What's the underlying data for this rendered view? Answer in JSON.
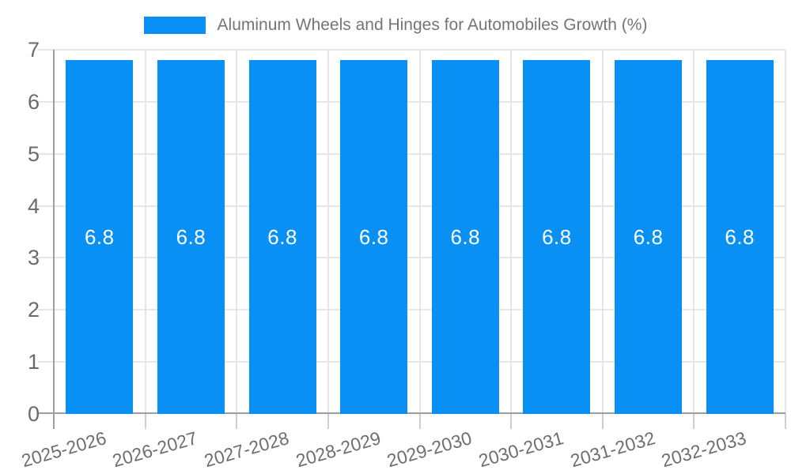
{
  "legend": {
    "label": "Aluminum Wheels and Hinges for Automobiles Growth (%)"
  },
  "chart_data": {
    "type": "bar",
    "title": "Aluminum Wheels and Hinges for Automobiles Growth (%)",
    "categories": [
      "2025-2026",
      "2026-2027",
      "2027-2028",
      "2028-2029",
      "2029-2030",
      "2030-2031",
      "2031-2032",
      "2032-2033"
    ],
    "values": [
      6.8,
      6.8,
      6.8,
      6.8,
      6.8,
      6.8,
      6.8,
      6.8
    ],
    "value_labels": [
      "6.8",
      "6.8",
      "6.8",
      "6.8",
      "6.8",
      "6.8",
      "6.8",
      "6.8"
    ],
    "xlabel": "",
    "ylabel": "",
    "ylim": [
      0,
      7
    ],
    "yticks": [
      0,
      1,
      2,
      3,
      4,
      5,
      6,
      7
    ],
    "grid": true,
    "legend_position": "top",
    "colors": {
      "bar": "#0890F5",
      "bar_value_text": "#ffffff",
      "gridline": "#e6e6e6",
      "category_tick": "#cfcfcf",
      "axis_line": "#9e9e9e",
      "tick_text": "#6b6b6b",
      "legend_text": "#757575",
      "background": "#ffffff"
    }
  }
}
